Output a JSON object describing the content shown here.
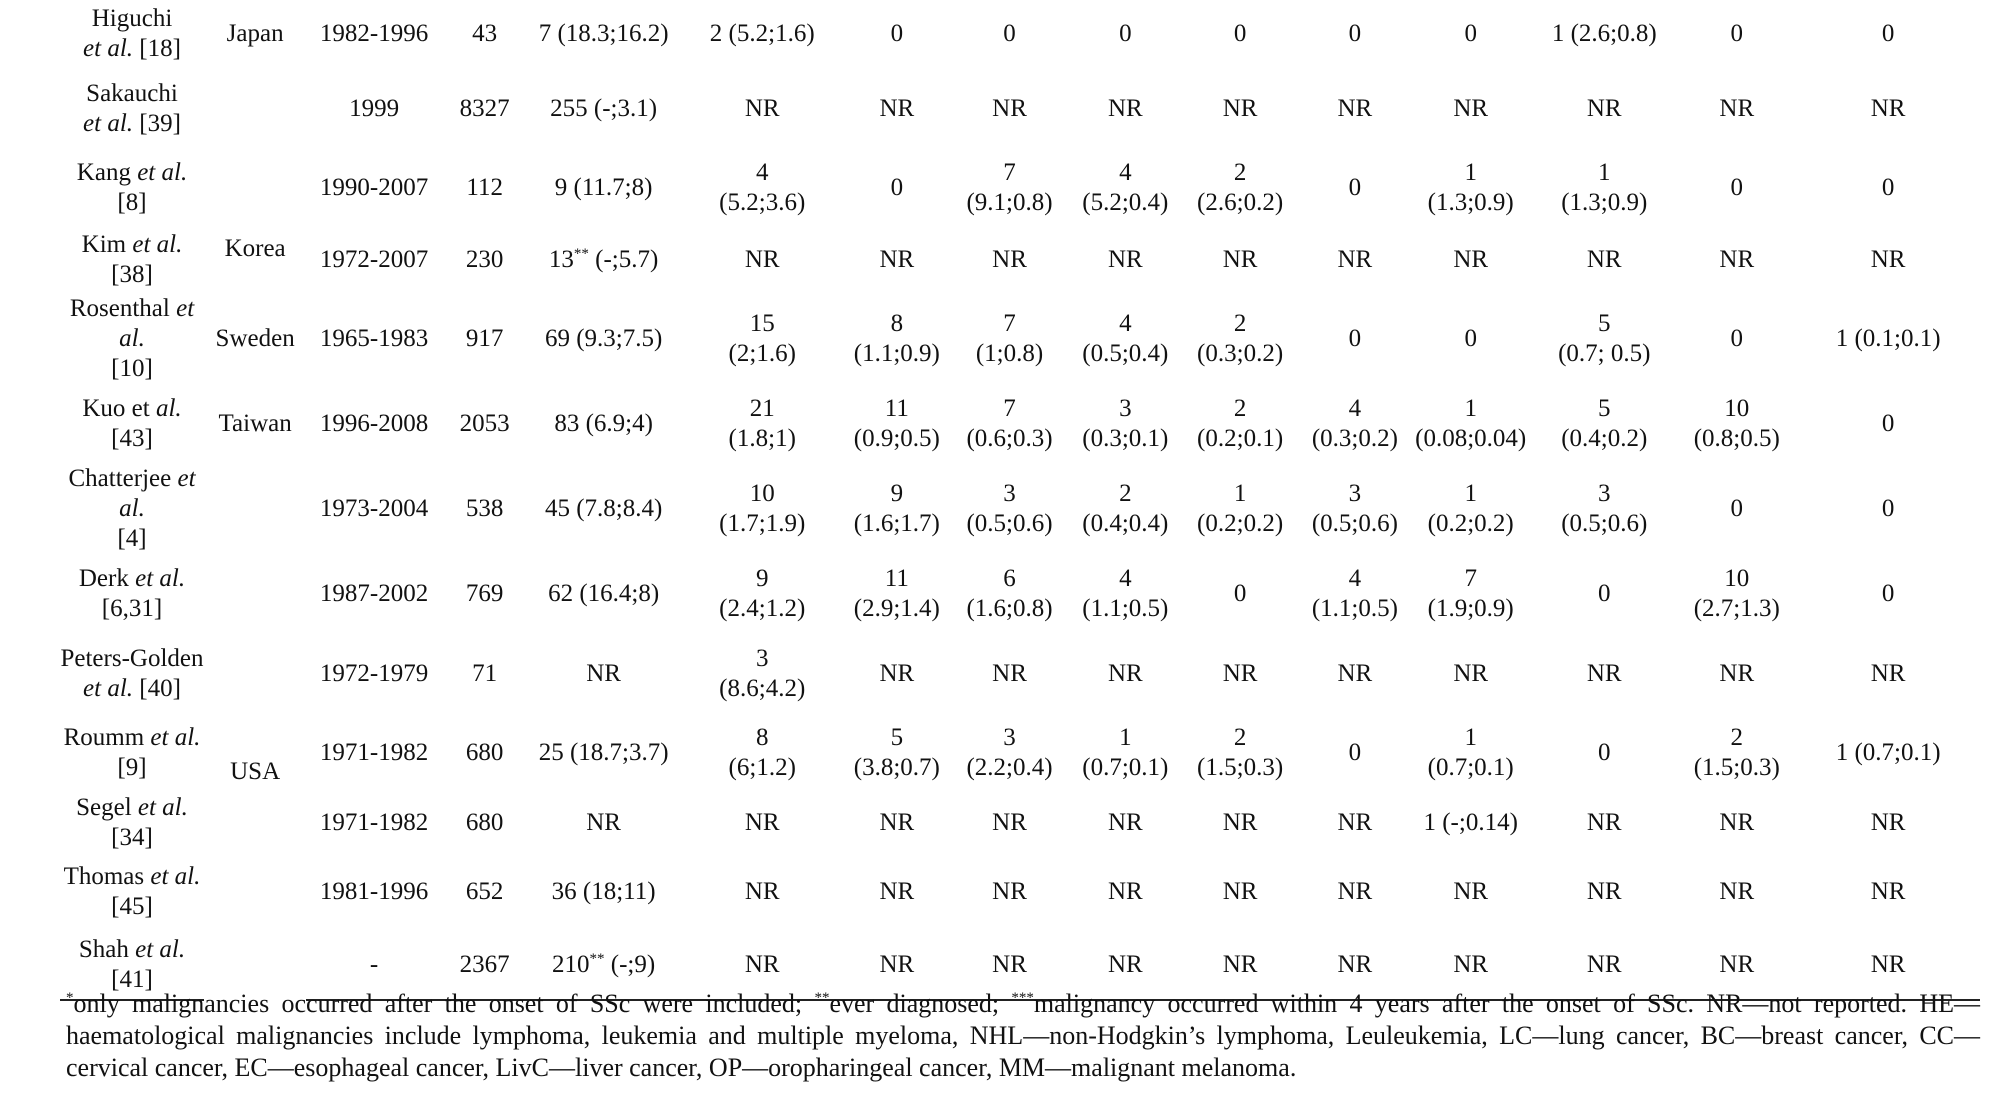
{
  "rows": [
    {
      "study": "Higuchi",
      "study_line2": "et al.",
      "ref": "[18]",
      "country": "Japan",
      "years": "1982-1996",
      "n": "43",
      "total": "7 (18.3;16.2)",
      "c": [
        [
          "2 (5.2;1.6)"
        ],
        [
          "0"
        ],
        [
          "0"
        ],
        [
          "0"
        ],
        [
          "0"
        ],
        [
          "0"
        ],
        [
          "0"
        ],
        [
          "1 (2.6;0.8)"
        ],
        [
          "0"
        ],
        [
          "0"
        ]
      ]
    },
    {
      "study": "Sakauchi",
      "study_line2": "et al.",
      "ref": "[39]",
      "country": "",
      "years": "1999",
      "n": "8327",
      "total": "255 (-;3.1)",
      "c": [
        [
          "NR"
        ],
        [
          "NR"
        ],
        [
          "NR"
        ],
        [
          "NR"
        ],
        [
          "NR"
        ],
        [
          "NR"
        ],
        [
          "NR"
        ],
        [
          "NR"
        ],
        [
          "NR"
        ],
        [
          "NR"
        ]
      ]
    },
    {
      "study": "Kang",
      "study_line2": "et al.",
      "ref": "[8]",
      "country": "Korea",
      "years": "1990-2007",
      "n": "112",
      "total": "9 (11.7;8)",
      "c": [
        [
          "4",
          "(5.2;3.6)"
        ],
        [
          "0"
        ],
        [
          "7",
          "(9.1;0.8)"
        ],
        [
          "4",
          "(5.2;0.4)"
        ],
        [
          "2",
          "(2.6;0.2)"
        ],
        [
          "0"
        ],
        [
          "1",
          "(1.3;0.9)"
        ],
        [
          "1",
          "(1.3;0.9)"
        ],
        [
          "0"
        ],
        [
          "0"
        ]
      ]
    },
    {
      "study": "Kim",
      "study_line2": "et al.",
      "ref": "[38]",
      "country": "",
      "years": "1972-2007",
      "n": "230",
      "total_a": "13",
      "total_sup": "**",
      "total_b": " (-;5.7)",
      "c": [
        [
          "NR"
        ],
        [
          "NR"
        ],
        [
          "NR"
        ],
        [
          "NR"
        ],
        [
          "NR"
        ],
        [
          "NR"
        ],
        [
          "NR"
        ],
        [
          "NR"
        ],
        [
          "NR"
        ],
        [
          "NR"
        ]
      ]
    },
    {
      "study": "Rosenthal",
      "study_line2": "et al.",
      "ref": "[10]",
      "country": "Sweden",
      "years": "1965-1983",
      "n": "917",
      "total": "69 (9.3;7.5)",
      "c": [
        [
          "15",
          "(2;1.6)"
        ],
        [
          "8",
          "(1.1;0.9)"
        ],
        [
          "7",
          "(1;0.8)"
        ],
        [
          "4",
          "(0.5;0.4)"
        ],
        [
          "2",
          "(0.3;0.2)"
        ],
        [
          "0"
        ],
        [
          "0"
        ],
        [
          "5",
          "(0.7; 0.5)"
        ],
        [
          "0"
        ],
        [
          "1 (0.1;0.1)"
        ]
      ]
    },
    {
      "study": "Kuo et",
      "study_line2": "al.",
      "ref": "[43]",
      "country": "Taiwan",
      "years": "1996-2008",
      "n": "2053",
      "total": "83 (6.9;4)",
      "c": [
        [
          "21",
          "(1.8;1)"
        ],
        [
          "11",
          "(0.9;0.5)"
        ],
        [
          "7",
          "(0.6;0.3)"
        ],
        [
          "3",
          "(0.3;0.1)"
        ],
        [
          "2",
          "(0.2;0.1)"
        ],
        [
          "4",
          "(0.3;0.2)"
        ],
        [
          "1",
          "(0.08;0.04)"
        ],
        [
          "5",
          "(0.4;0.2)"
        ],
        [
          "10",
          "(0.8;0.5)"
        ],
        [
          "0"
        ]
      ]
    },
    {
      "study": "Chatterjee",
      "study_line2": "et al.",
      "ref": "[4]",
      "country": "",
      "years": "1973-2004",
      "n": "538",
      "total": "45 (7.8;8.4)",
      "c": [
        [
          "10",
          "(1.7;1.9)"
        ],
        [
          "9",
          "(1.6;1.7)"
        ],
        [
          "3",
          "(0.5;0.6)"
        ],
        [
          "2",
          "(0.4;0.4)"
        ],
        [
          "1",
          "(0.2;0.2)"
        ],
        [
          "3",
          "(0.5;0.6)"
        ],
        [
          "1",
          "(0.2;0.2)"
        ],
        [
          "3",
          "(0.5;0.6)"
        ],
        [
          "0"
        ],
        [
          "0"
        ]
      ]
    },
    {
      "study": "Derk",
      "study_line2": "et al.",
      "ref": "[6,31]",
      "country": "",
      "years": "1987-2002",
      "n": "769",
      "total": "62 (16.4;8)",
      "c": [
        [
          "9",
          "(2.4;1.2)"
        ],
        [
          "11",
          "(2.9;1.4)"
        ],
        [
          "6",
          "(1.6;0.8)"
        ],
        [
          "4",
          "(1.1;0.5)"
        ],
        [
          "0"
        ],
        [
          "4",
          "(1.1;0.5)"
        ],
        [
          "7",
          "(1.9;0.9)"
        ],
        [
          "0"
        ],
        [
          "10",
          "(2.7;1.3)"
        ],
        [
          "0"
        ]
      ]
    },
    {
      "study": "Peters-Golden",
      "study_line2": "et al.",
      "ref": "[40]",
      "country": "",
      "years": "1972-1979",
      "n": "71",
      "total": "NR",
      "c": [
        [
          "3",
          "(8.6;4.2)"
        ],
        [
          "NR"
        ],
        [
          "NR"
        ],
        [
          "NR"
        ],
        [
          "NR"
        ],
        [
          "NR"
        ],
        [
          "NR"
        ],
        [
          "NR"
        ],
        [
          "NR"
        ],
        [
          "NR"
        ]
      ]
    },
    {
      "study": "Roumm",
      "study_line2": "et al.",
      "ref": "[9]",
      "country": "USA",
      "years": "1971-1982",
      "n": "680",
      "total": "25 (18.7;3.7)",
      "c": [
        [
          "8",
          "(6;1.2)"
        ],
        [
          "5",
          "(3.8;0.7)"
        ],
        [
          "3",
          "(2.2;0.4)"
        ],
        [
          "1",
          "(0.7;0.1)"
        ],
        [
          "2",
          "(1.5;0.3)"
        ],
        [
          "0"
        ],
        [
          "1",
          "(0.7;0.1)"
        ],
        [
          "0"
        ],
        [
          "2",
          "(1.5;0.3)"
        ],
        [
          "1 (0.7;0.1)"
        ]
      ]
    },
    {
      "study": "Segel",
      "study_line2": "et al.",
      "ref": "[34]",
      "country": "",
      "years": "1971-1982",
      "n": "680",
      "total": "NR",
      "c": [
        [
          "NR"
        ],
        [
          "NR"
        ],
        [
          "NR"
        ],
        [
          "NR"
        ],
        [
          "NR"
        ],
        [
          "NR"
        ],
        [
          "1 (-;0.14)"
        ],
        [
          "NR"
        ],
        [
          "NR"
        ],
        [
          "NR"
        ]
      ]
    },
    {
      "study": "Thomas",
      "study_line2": "et al.",
      "ref": "[45]",
      "country": "",
      "years": "1981-1996",
      "n": "652",
      "total": "36 (18;11)",
      "c": [
        [
          "NR"
        ],
        [
          "NR"
        ],
        [
          "NR"
        ],
        [
          "NR"
        ],
        [
          "NR"
        ],
        [
          "NR"
        ],
        [
          "NR"
        ],
        [
          "NR"
        ],
        [
          "NR"
        ],
        [
          "NR"
        ]
      ]
    },
    {
      "study": "Shah",
      "study_line2": "et al.",
      "ref": "[41]",
      "country": "",
      "years": "-",
      "n": "2367",
      "total_a": "210",
      "total_sup": "**",
      "total_b": " (-;9)",
      "c": [
        [
          "NR"
        ],
        [
          "NR"
        ],
        [
          "NR"
        ],
        [
          "NR"
        ],
        [
          "NR"
        ],
        [
          "NR"
        ],
        [
          "NR"
        ],
        [
          "NR"
        ],
        [
          "NR"
        ],
        [
          "NR"
        ]
      ]
    }
  ],
  "footnote": {
    "sup1": "*",
    "t1": "only malignancies occurred after the onset of SSc were included; ",
    "sup2": "**",
    "t2": "ever diagnosed; ",
    "sup3": "***",
    "t3": "malignancy occurred within 4 years after the onset of SSc. NR—not reported. HE—haematological malignancies include lymphoma, leukemia and multiple myeloma, NHL—non-Hodgkin’s lymphoma, Leuleukemia, LC—lung cancer, BC—breast cancer, CC—cervical cancer, EC—esophageal cancer, LivC—liver cancer, OP—oropharingeal cancer, MM—malignant melanoma."
  }
}
